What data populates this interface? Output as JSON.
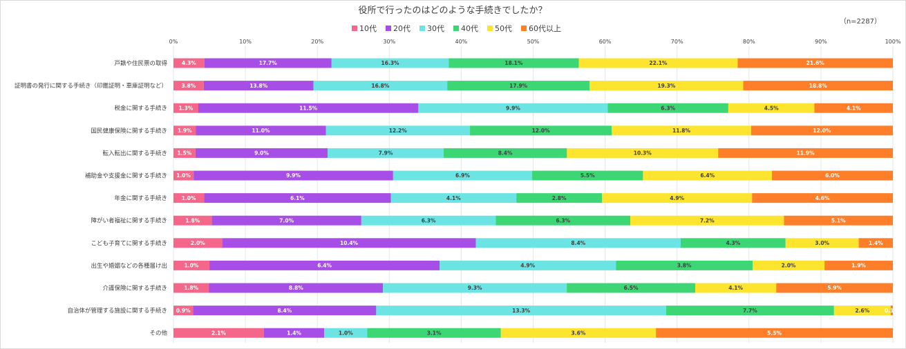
{
  "chart_data": {
    "type": "bar",
    "orientation": "horizontal",
    "stacked": true,
    "title": "役所で行ったのはどのような手続きでしたか？",
    "sample_note": "（n=2287）",
    "xlim": [
      0,
      100
    ],
    "x_ticks": [
      "0%",
      "10%",
      "20%",
      "30%",
      "40%",
      "50%",
      "60%",
      "70%",
      "80%",
      "90%",
      "100%"
    ],
    "legend_position": "top",
    "grid": true,
    "categories": [
      "戸籍や住民票の取得",
      "証明書の発行に関する手続き（印鑑証明・車庫証明など）",
      "税金に関する手続き",
      "国民健康保険に関する手続き",
      "転入転出に関する手続き",
      "補助金や支援金に関する手続き",
      "年金に関する手続き",
      "障がい者福祉に関する手続き",
      "こども子育てに関する手続き",
      "出生や婚姻などの各種届け出",
      "介護保険に関する手続き",
      "自治体が管理する施設に関する手続き",
      "その他"
    ],
    "series": [
      {
        "name": "10代",
        "color": "#f4678b",
        "values": [
          4.3,
          3.8,
          1.3,
          1.9,
          1.5,
          1.0,
          1.0,
          1.8,
          2.0,
          1.0,
          1.8,
          0.9,
          2.1
        ]
      },
      {
        "name": "20代",
        "color": "#a64ee6",
        "values": [
          17.7,
          13.8,
          11.5,
          11.0,
          9.0,
          9.9,
          6.1,
          7.0,
          10.4,
          6.4,
          8.8,
          8.4,
          1.4
        ]
      },
      {
        "name": "30代",
        "color": "#6ce4e4",
        "values": [
          16.3,
          16.8,
          9.9,
          12.2,
          7.9,
          6.9,
          4.1,
          6.3,
          8.4,
          4.9,
          9.3,
          13.3,
          1.0
        ]
      },
      {
        "name": "40代",
        "color": "#3dd674",
        "values": [
          18.1,
          17.9,
          6.3,
          12.0,
          8.4,
          5.5,
          2.8,
          6.3,
          4.3,
          3.8,
          6.5,
          7.7,
          3.1
        ]
      },
      {
        "name": "50代",
        "color": "#fde42e",
        "values": [
          22.1,
          19.3,
          4.5,
          11.8,
          10.3,
          6.4,
          4.9,
          7.2,
          3.0,
          2.0,
          4.1,
          2.6,
          3.6
        ]
      },
      {
        "name": "60代以上",
        "color": "#fe7e29",
        "values": [
          21.6,
          18.8,
          4.1,
          12.0,
          11.9,
          6.0,
          4.6,
          5.1,
          1.4,
          1.9,
          5.9,
          0.1,
          5.5
        ]
      }
    ]
  }
}
